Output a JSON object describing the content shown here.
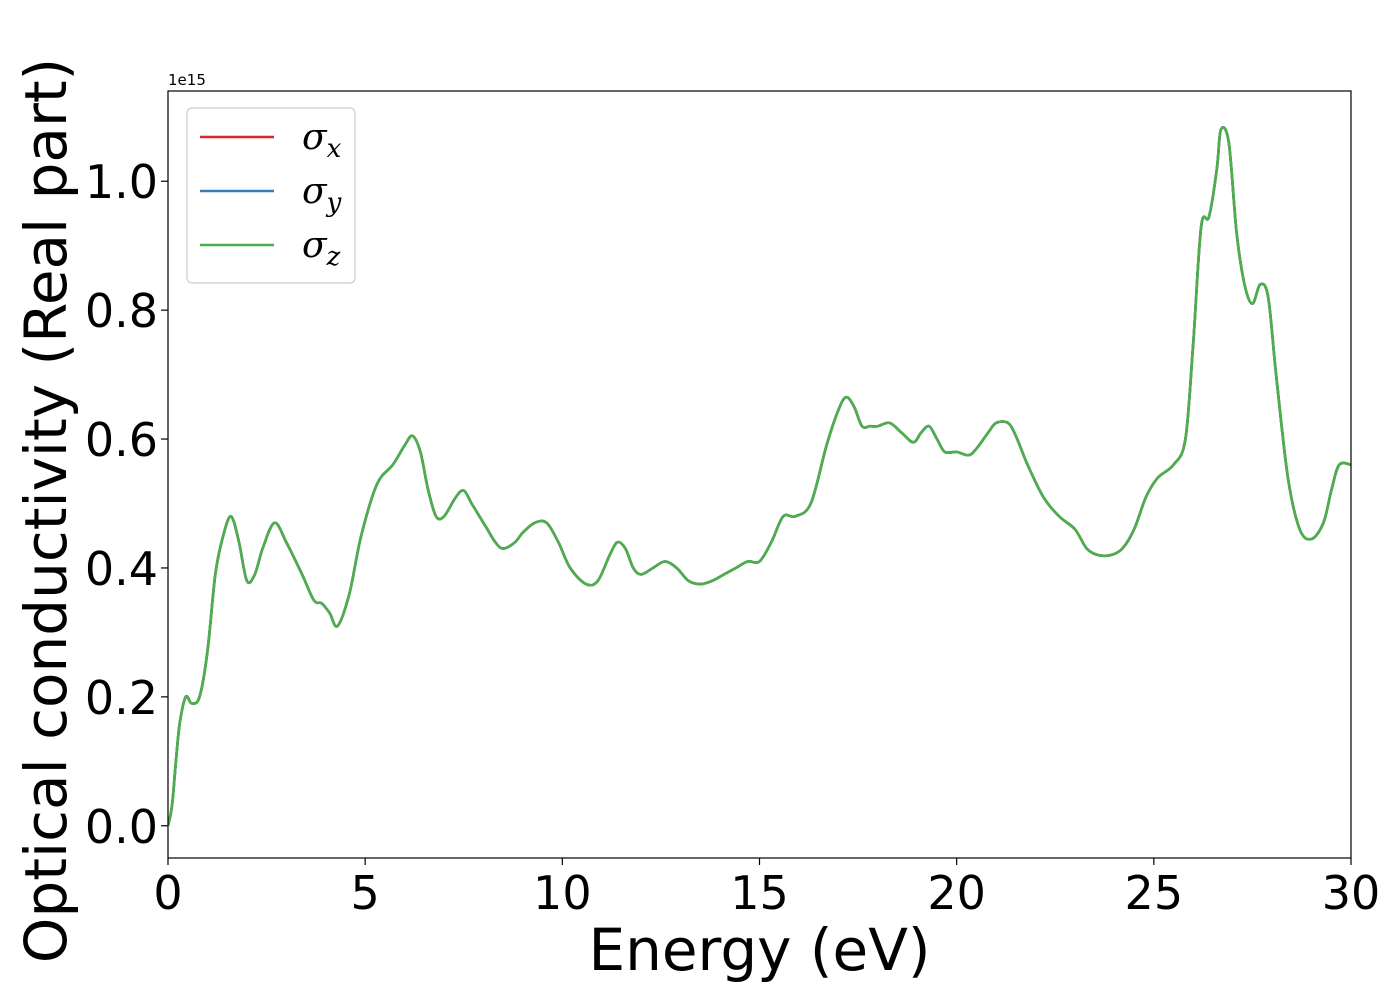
{
  "chart_data": {
    "type": "line",
    "xlabel": "Energy (eV)",
    "ylabel": "Optical conductivity (Real part)",
    "y_offset_text": "1e15",
    "xlim": [
      0,
      30
    ],
    "ylim": [
      -0.05,
      1.14
    ],
    "x_ticks": [
      0,
      5,
      10,
      15,
      20,
      25,
      30
    ],
    "x_tick_labels": [
      "0",
      "5",
      "10",
      "15",
      "20",
      "25",
      "30"
    ],
    "y_ticks": [
      0.0,
      0.2,
      0.4,
      0.6,
      0.8,
      1.0
    ],
    "y_tick_labels": [
      "0.0",
      "0.2",
      "0.4",
      "0.6",
      "0.8",
      "1.0"
    ],
    "grid": false,
    "legend_position": "top-left",
    "x": [
      0,
      0.1,
      0.2,
      0.3,
      0.45,
      0.6,
      0.8,
      1.0,
      1.2,
      1.4,
      1.6,
      1.8,
      2.0,
      2.2,
      2.4,
      2.7,
      3.0,
      3.4,
      3.7,
      3.9,
      4.1,
      4.3,
      4.6,
      4.9,
      5.3,
      5.7,
      6.0,
      6.2,
      6.4,
      6.6,
      6.8,
      7.0,
      7.3,
      7.5,
      7.7,
      7.9,
      8.1,
      8.3,
      8.5,
      8.8,
      9.0,
      9.3,
      9.6,
      9.9,
      10.2,
      10.6,
      10.9,
      11.2,
      11.4,
      11.6,
      11.8,
      12.0,
      12.3,
      12.6,
      12.9,
      13.2,
      13.5,
      13.8,
      14.1,
      14.4,
      14.7,
      15.0,
      15.3,
      15.6,
      15.9,
      16.3,
      16.7,
      17.0,
      17.2,
      17.4,
      17.6,
      17.8,
      18.0,
      18.3,
      18.6,
      18.9,
      19.1,
      19.3,
      19.5,
      19.7,
      20.0,
      20.3,
      20.5,
      20.8,
      21.0,
      21.3,
      21.5,
      21.8,
      22.2,
      22.6,
      23.0,
      23.3,
      23.6,
      23.9,
      24.2,
      24.5,
      24.8,
      25.1,
      25.5,
      25.8,
      26.0,
      26.2,
      26.4,
      26.6,
      26.7,
      26.9,
      27.1,
      27.3,
      27.5,
      27.7,
      27.9,
      28.1,
      28.4,
      28.7,
      29.0,
      29.3,
      29.5,
      29.7,
      30.0
    ],
    "series": [
      {
        "name": "σx",
        "color": "#d62728",
        "values": [
          0,
          0.03,
          0.1,
          0.16,
          0.2,
          0.19,
          0.2,
          0.27,
          0.39,
          0.45,
          0.48,
          0.44,
          0.38,
          0.39,
          0.43,
          0.47,
          0.44,
          0.39,
          0.35,
          0.345,
          0.33,
          0.31,
          0.36,
          0.45,
          0.53,
          0.56,
          0.59,
          0.605,
          0.58,
          0.52,
          0.48,
          0.48,
          0.51,
          0.52,
          0.5,
          0.48,
          0.46,
          0.44,
          0.43,
          0.44,
          0.455,
          0.47,
          0.47,
          0.44,
          0.4,
          0.375,
          0.38,
          0.42,
          0.44,
          0.43,
          0.4,
          0.39,
          0.4,
          0.41,
          0.4,
          0.38,
          0.375,
          0.38,
          0.39,
          0.4,
          0.41,
          0.41,
          0.44,
          0.48,
          0.48,
          0.5,
          0.59,
          0.645,
          0.665,
          0.65,
          0.62,
          0.62,
          0.62,
          0.625,
          0.61,
          0.595,
          0.61,
          0.62,
          0.6,
          0.58,
          0.58,
          0.575,
          0.585,
          0.61,
          0.625,
          0.625,
          0.605,
          0.56,
          0.51,
          0.48,
          0.46,
          0.43,
          0.42,
          0.42,
          0.43,
          0.46,
          0.51,
          0.54,
          0.56,
          0.6,
          0.75,
          0.93,
          0.945,
          1.02,
          1.08,
          1.06,
          0.92,
          0.84,
          0.81,
          0.84,
          0.82,
          0.7,
          0.54,
          0.46,
          0.445,
          0.47,
          0.52,
          0.56,
          0.56
        ]
      },
      {
        "name": "σy",
        "color": "#377eb8",
        "values": [
          0,
          0.03,
          0.1,
          0.16,
          0.2,
          0.19,
          0.2,
          0.27,
          0.39,
          0.45,
          0.48,
          0.44,
          0.38,
          0.39,
          0.43,
          0.47,
          0.44,
          0.39,
          0.35,
          0.345,
          0.33,
          0.31,
          0.36,
          0.45,
          0.53,
          0.56,
          0.59,
          0.605,
          0.58,
          0.52,
          0.48,
          0.48,
          0.51,
          0.52,
          0.5,
          0.48,
          0.46,
          0.44,
          0.43,
          0.44,
          0.455,
          0.47,
          0.47,
          0.44,
          0.4,
          0.375,
          0.38,
          0.42,
          0.44,
          0.43,
          0.4,
          0.39,
          0.4,
          0.41,
          0.4,
          0.38,
          0.375,
          0.38,
          0.39,
          0.4,
          0.41,
          0.41,
          0.44,
          0.48,
          0.48,
          0.5,
          0.59,
          0.645,
          0.665,
          0.65,
          0.62,
          0.62,
          0.62,
          0.625,
          0.61,
          0.595,
          0.61,
          0.62,
          0.6,
          0.58,
          0.58,
          0.575,
          0.585,
          0.61,
          0.625,
          0.625,
          0.605,
          0.56,
          0.51,
          0.48,
          0.46,
          0.43,
          0.42,
          0.42,
          0.43,
          0.46,
          0.51,
          0.54,
          0.56,
          0.6,
          0.75,
          0.93,
          0.945,
          1.02,
          1.08,
          1.06,
          0.92,
          0.84,
          0.81,
          0.84,
          0.82,
          0.7,
          0.54,
          0.46,
          0.445,
          0.47,
          0.52,
          0.56,
          0.56
        ]
      },
      {
        "name": "σz",
        "color": "#4daf4a",
        "values": [
          0,
          0.03,
          0.1,
          0.16,
          0.2,
          0.19,
          0.2,
          0.27,
          0.39,
          0.45,
          0.48,
          0.44,
          0.38,
          0.39,
          0.43,
          0.47,
          0.44,
          0.39,
          0.35,
          0.345,
          0.33,
          0.31,
          0.36,
          0.45,
          0.53,
          0.56,
          0.59,
          0.605,
          0.58,
          0.52,
          0.48,
          0.48,
          0.51,
          0.52,
          0.5,
          0.48,
          0.46,
          0.44,
          0.43,
          0.44,
          0.455,
          0.47,
          0.47,
          0.44,
          0.4,
          0.375,
          0.38,
          0.42,
          0.44,
          0.43,
          0.4,
          0.39,
          0.4,
          0.41,
          0.4,
          0.38,
          0.375,
          0.38,
          0.39,
          0.4,
          0.41,
          0.41,
          0.44,
          0.48,
          0.48,
          0.5,
          0.59,
          0.645,
          0.665,
          0.65,
          0.62,
          0.62,
          0.62,
          0.625,
          0.61,
          0.595,
          0.61,
          0.62,
          0.6,
          0.58,
          0.58,
          0.575,
          0.585,
          0.61,
          0.625,
          0.625,
          0.605,
          0.56,
          0.51,
          0.48,
          0.46,
          0.43,
          0.42,
          0.42,
          0.43,
          0.46,
          0.51,
          0.54,
          0.56,
          0.6,
          0.75,
          0.93,
          0.945,
          1.02,
          1.08,
          1.06,
          0.92,
          0.84,
          0.81,
          0.84,
          0.82,
          0.7,
          0.54,
          0.46,
          0.445,
          0.47,
          0.52,
          0.56,
          0.56
        ]
      }
    ],
    "legend": [
      {
        "symbol": "σ",
        "sub": "x",
        "color": "#d62728"
      },
      {
        "symbol": "σ",
        "sub": "y",
        "color": "#377eb8"
      },
      {
        "symbol": "σ",
        "sub": "z",
        "color": "#4daf4a"
      }
    ]
  }
}
